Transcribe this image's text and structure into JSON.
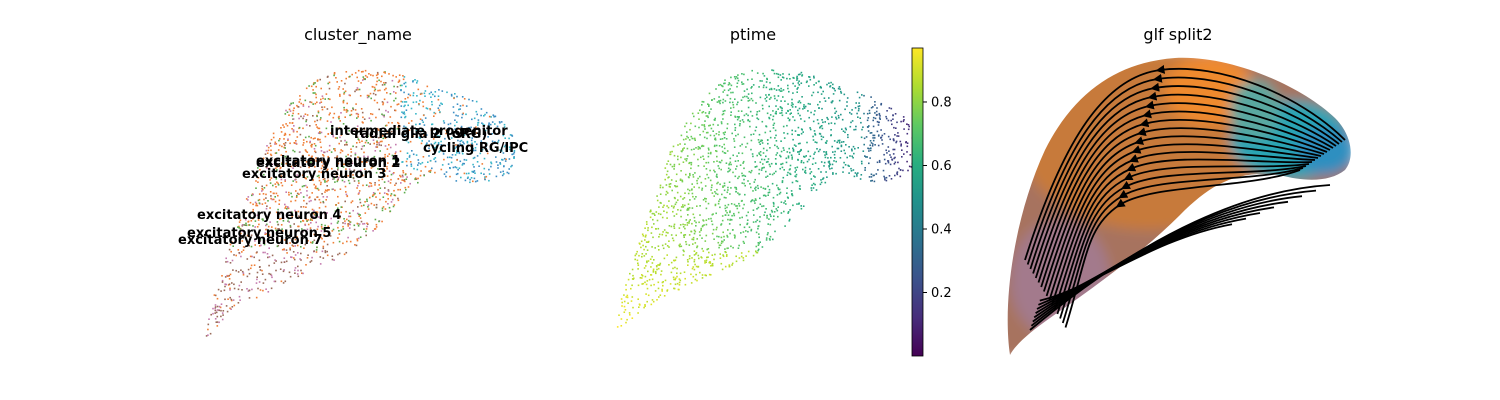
{
  "chart_data": [
    {
      "type": "scatter",
      "title": "cluster_name",
      "legend": "on data",
      "cluster_labels": [
        "intermediate progenitor",
        "radial glia 2 (oRG)",
        "cycling RG/IPC",
        "excitatory neuron 1",
        "excitatory neuron 2",
        "excitatory neuron 3",
        "excitatory neuron 4",
        "excitatory neuron 5",
        "excitatory neuron 7"
      ],
      "colors": {
        "progenitor_blue": "#3d8fc4",
        "progenitor_teal": "#38b6c8",
        "neuron_orange": "#f07e36",
        "neuron_green": "#5aab4a",
        "neuron_pink": "#c47bae",
        "neuron_brown": "#9a6b5a"
      }
    },
    {
      "type": "scatter",
      "title": "ptime",
      "colormap": "viridis",
      "colorbar": {
        "min": 0.0,
        "max": 0.97,
        "ticks": [
          "0.2",
          "0.4",
          "0.6",
          "0.8"
        ],
        "tick_values": [
          0.2,
          0.4,
          0.6,
          0.8
        ]
      }
    },
    {
      "type": "scatter",
      "title": "glf split2",
      "overlay": "velocity streamlines",
      "stream_color": "#000000"
    }
  ]
}
